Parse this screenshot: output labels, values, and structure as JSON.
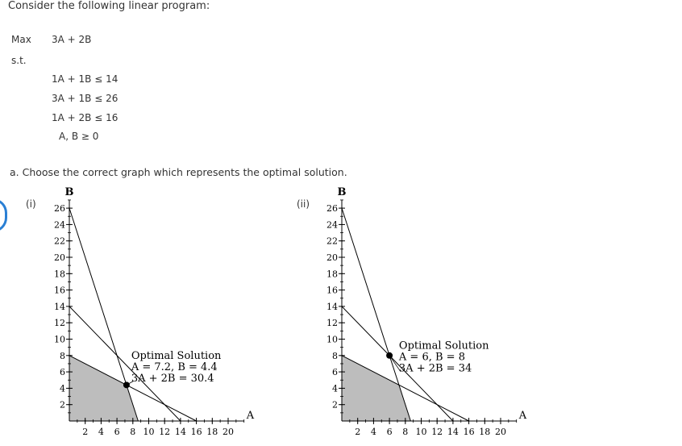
{
  "problem": {
    "intro": "Consider the following linear program:",
    "max_label": "Max",
    "objective": "3A + 2B",
    "st_label": "s.t.",
    "constraints": [
      "1A + 1B ≤ 14",
      "3A + 1B ≤ 26",
      "1A + 2B ≤ 16"
    ],
    "nonneg": "A, B ≥ 0"
  },
  "question": "a. Choose the correct graph which represents the optimal solution.",
  "options": [
    {
      "label": "(i)",
      "selected": true
    },
    {
      "label": "(ii)",
      "selected": false
    }
  ],
  "accent_color": "#2a7fd4",
  "feasible_fill": "#bdbdbd",
  "chart_data": [
    {
      "type": "line",
      "xlabel": "A",
      "ylabel": "B",
      "xlim": [
        0,
        22
      ],
      "ylim": [
        0,
        27
      ],
      "x_ticks": [
        2,
        4,
        6,
        8,
        10,
        12,
        14,
        16,
        18,
        20
      ],
      "y_ticks": [
        2,
        4,
        6,
        8,
        10,
        12,
        14,
        16,
        18,
        20,
        22,
        24,
        26
      ],
      "lines": [
        {
          "points": [
            [
              0,
              14
            ],
            [
              14,
              0
            ]
          ]
        },
        {
          "points": [
            [
              0,
              26
            ],
            [
              8.667,
              0
            ]
          ]
        },
        {
          "points": [
            [
              0,
              8
            ],
            [
              16,
              0
            ]
          ]
        }
      ],
      "feasible_region": [
        [
          0,
          0
        ],
        [
          0,
          8
        ],
        [
          7.2,
          4.4
        ],
        [
          8.667,
          0
        ]
      ],
      "optimal_point": [
        7.2,
        4.4
      ],
      "annotation": {
        "lines": [
          "Optimal Solution",
          "A = 7.2, B = 4.4",
          "3A + 2B = 30.4"
        ],
        "at": [
          7.8,
          7.6
        ]
      }
    },
    {
      "type": "line",
      "xlabel": "A",
      "ylabel": "B",
      "xlim": [
        0,
        22
      ],
      "ylim": [
        0,
        27
      ],
      "x_ticks": [
        2,
        4,
        6,
        8,
        10,
        12,
        14,
        16,
        18,
        20
      ],
      "y_ticks": [
        2,
        4,
        6,
        8,
        10,
        12,
        14,
        16,
        18,
        20,
        22,
        24,
        26
      ],
      "lines": [
        {
          "points": [
            [
              0,
              14
            ],
            [
              14,
              0
            ]
          ]
        },
        {
          "points": [
            [
              0,
              26
            ],
            [
              8.667,
              0
            ]
          ]
        },
        {
          "points": [
            [
              0,
              8
            ],
            [
              16,
              0
            ]
          ]
        }
      ],
      "feasible_region": [
        [
          0,
          0
        ],
        [
          0,
          8
        ],
        [
          7.2,
          4.4
        ],
        [
          8.667,
          0
        ]
      ],
      "optimal_point": [
        6,
        8
      ],
      "annotation": {
        "lines": [
          "Optimal Solution",
          "A = 6, B = 8",
          "3A + 2B = 34"
        ],
        "at": [
          7.2,
          8.8
        ]
      }
    }
  ]
}
